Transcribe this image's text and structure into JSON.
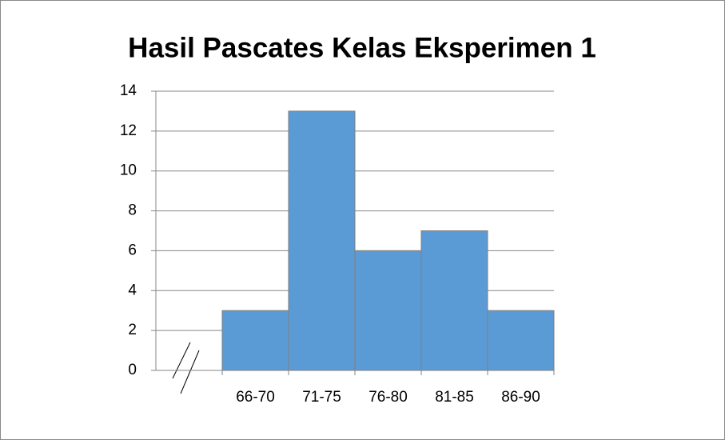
{
  "chart_data": {
    "type": "bar",
    "title": "Hasil Pascates Kelas Eksperimen 1",
    "categories": [
      null,
      "66-70",
      "71-75",
      "76-80",
      "81-85",
      "86-90"
    ],
    "values": [
      null,
      3,
      13,
      6,
      7,
      3
    ],
    "color": "#5b9bd5",
    "ylim": [
      0,
      14
    ],
    "yticks": [
      0,
      2,
      4,
      6,
      8,
      10,
      12,
      14
    ],
    "grid": true
  }
}
